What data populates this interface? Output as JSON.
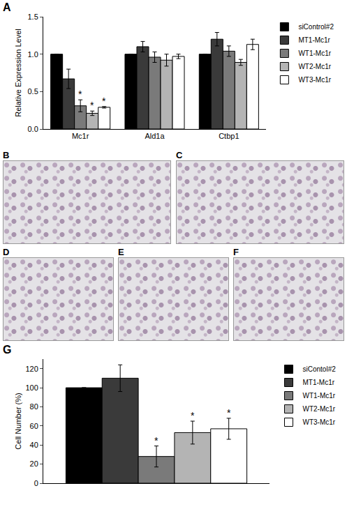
{
  "chart_data": [
    {
      "panel": "A",
      "type": "bar",
      "categories": [
        "Mc1r",
        "Ald1a",
        "Ctbp1"
      ],
      "y_label": "Relative Expression Level",
      "ylim": [
        0,
        1.5
      ],
      "yticks": [
        {
          "value": 0,
          "label": "0.0"
        },
        {
          "value": 0.5,
          "label": "0.5"
        },
        {
          "value": 1,
          "label": "1.0"
        },
        {
          "value": 1.5,
          "label": "1.5"
        }
      ],
      "grid": false,
      "legend": "right",
      "series": [
        {
          "name": "siControl#2",
          "color": "#000000",
          "values": [
            1.0,
            1.0,
            1.0
          ],
          "errors": [
            0,
            0,
            0
          ]
        },
        {
          "name": "MT1-Mc1r",
          "color": "#3a3a3a",
          "values": [
            0.67,
            1.1,
            1.2
          ],
          "errors": [
            0.13,
            0.07,
            0.09
          ]
        },
        {
          "name": "WT1-Mc1r",
          "color": "#7a7a7a",
          "values": [
            0.31,
            0.96,
            1.04
          ],
          "errors": [
            0.08,
            0.07,
            0.07
          ]
        },
        {
          "name": "WT2-Mc1r",
          "color": "#b4b4b4",
          "values": [
            0.21,
            0.92,
            0.89
          ],
          "errors": [
            0.03,
            0.08,
            0.04
          ]
        },
        {
          "name": "WT3-Mc1r",
          "color": "#ffffff",
          "values": [
            0.29,
            0.97,
            1.13
          ],
          "errors": [
            0.01,
            0.03,
            0.07
          ]
        }
      ],
      "annotations": [
        {
          "category": "Mc1r",
          "series": "WT1-Mc1r",
          "text": "*"
        },
        {
          "category": "Mc1r",
          "series": "WT2-Mc1r",
          "text": "*"
        },
        {
          "category": "Mc1r",
          "series": "WT3-Mc1r",
          "text": "*"
        }
      ]
    },
    {
      "panel": "G",
      "type": "bar",
      "categories": [
        null
      ],
      "y_label": "Cell Number (%)",
      "ylim": [
        0,
        130
      ],
      "yticks": [
        0,
        20,
        40,
        60,
        80,
        100,
        120
      ],
      "grid": false,
      "legend": "right",
      "tick_labels": "y",
      "series": [
        {
          "name": "siContol#2",
          "color": "#000000",
          "values": [
            100
          ],
          "errors": [
            0
          ]
        },
        {
          "name": "MT1-Mc1r",
          "color": "#3a3a3a",
          "values": [
            110
          ],
          "errors": [
            14
          ]
        },
        {
          "name": "WT1-Mc1r",
          "color": "#7a7a7a",
          "values": [
            28
          ],
          "errors": [
            11
          ]
        },
        {
          "name": "WT2-Mc1r",
          "color": "#b4b4b4",
          "values": [
            53
          ],
          "errors": [
            12
          ]
        },
        {
          "name": "WT3-Mc1r",
          "color": "#ffffff",
          "values": [
            57
          ],
          "errors": [
            11
          ]
        }
      ],
      "annotations": [
        {
          "category": null,
          "series": "WT1-Mc1r",
          "text": "*"
        },
        {
          "category": null,
          "series": "WT2-Mc1r",
          "text": "*"
        },
        {
          "category": null,
          "series": "WT3-Mc1r",
          "text": "*"
        }
      ]
    }
  ],
  "images": [
    "B",
    "C",
    "D",
    "E",
    "F"
  ]
}
